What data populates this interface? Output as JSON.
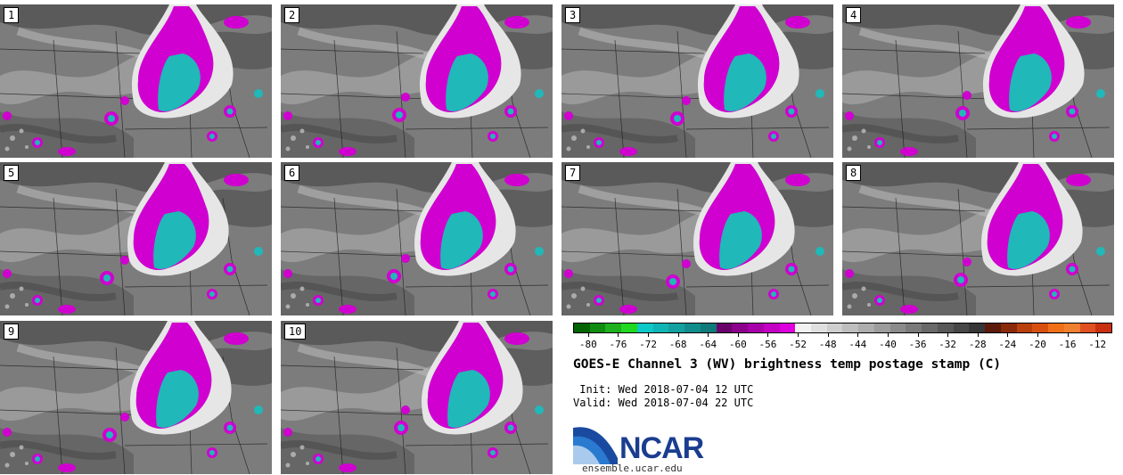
{
  "panels": [
    {
      "label": "1"
    },
    {
      "label": "2"
    },
    {
      "label": "3"
    },
    {
      "label": "4"
    },
    {
      "label": "5"
    },
    {
      "label": "6"
    },
    {
      "label": "7"
    },
    {
      "label": "8"
    },
    {
      "label": "9"
    },
    {
      "label": "10"
    }
  ],
  "colorbar": {
    "ticks": [
      "-80",
      "-76",
      "-72",
      "-68",
      "-64",
      "-60",
      "-56",
      "-52",
      "-48",
      "-44",
      "-40",
      "-36",
      "-32",
      "-28",
      "-24",
      "-20",
      "-16",
      "-12"
    ],
    "colors": [
      "#006400",
      "#108c10",
      "#1fb01f",
      "#20d820",
      "#0cc8c8",
      "#10b4b4",
      "#14a0a0",
      "#108c8c",
      "#0e7a7a",
      "#6a006a",
      "#8c008c",
      "#a800a8",
      "#c400c4",
      "#dd00dd",
      "#f2f2f2",
      "#e0e0e0",
      "#cfcfcf",
      "#bebebe",
      "#adadad",
      "#9c9c9c",
      "#8b8b8b",
      "#7a7a7a",
      "#696969",
      "#585858",
      "#474747",
      "#363636",
      "#5c1a0a",
      "#8a2a0a",
      "#b8400a",
      "#d85010",
      "#f07018",
      "#f08030",
      "#e05020",
      "#c83010"
    ]
  },
  "title": "GOES-E Channel 3 (WV) brightness temp postage stamp (C)",
  "init": " Init: Wed 2018-07-04 12 UTC",
  "valid": "Valid: Wed 2018-07-04 22 UTC",
  "logo": {
    "name": "NCAR",
    "url": "ensemble.ucar.edu"
  },
  "colors": {
    "deep_convection": "#d000d0",
    "coldest_tops": "#20b8b8",
    "background": "#7a7a7a"
  }
}
